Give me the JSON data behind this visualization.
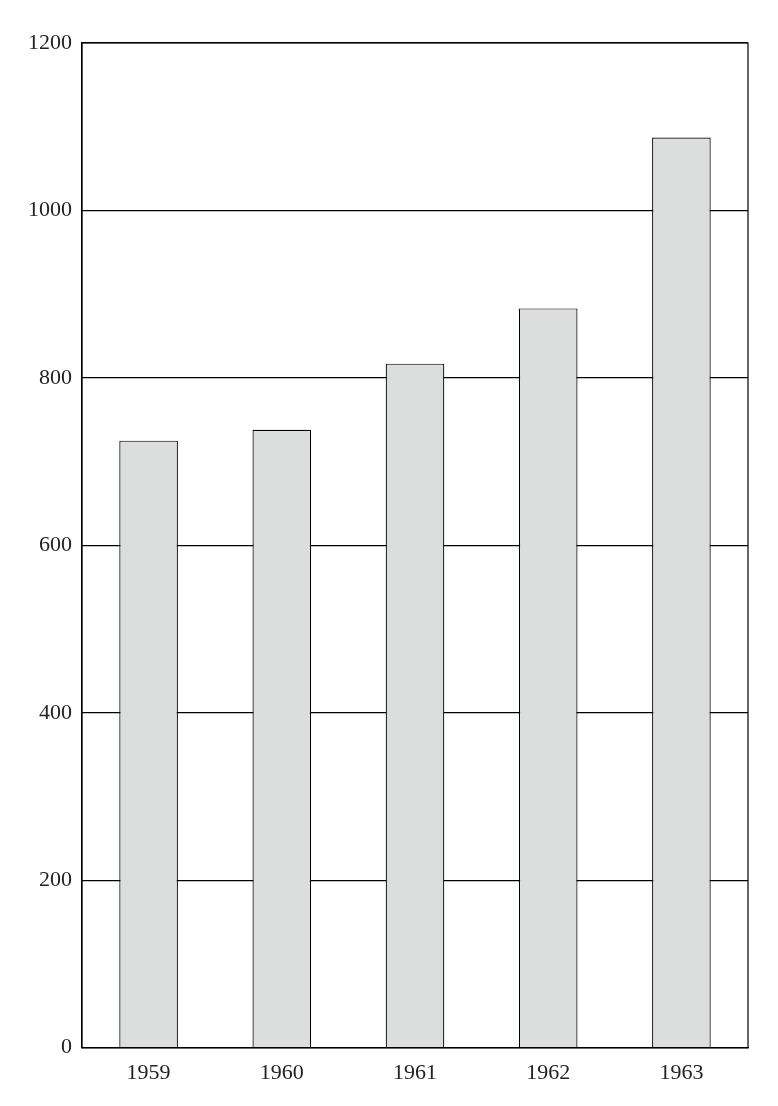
{
  "chart_data": {
    "type": "bar",
    "categories": [
      "1959",
      "1960",
      "1961",
      "1962",
      "1963"
    ],
    "values": [
      725,
      738,
      817,
      883,
      1087
    ],
    "color": "#dcdddd",
    "ylim": [
      0,
      1200
    ],
    "yticks": [
      0,
      200,
      400,
      600,
      800,
      1000,
      1200
    ],
    "grid": "y",
    "legend": false
  }
}
